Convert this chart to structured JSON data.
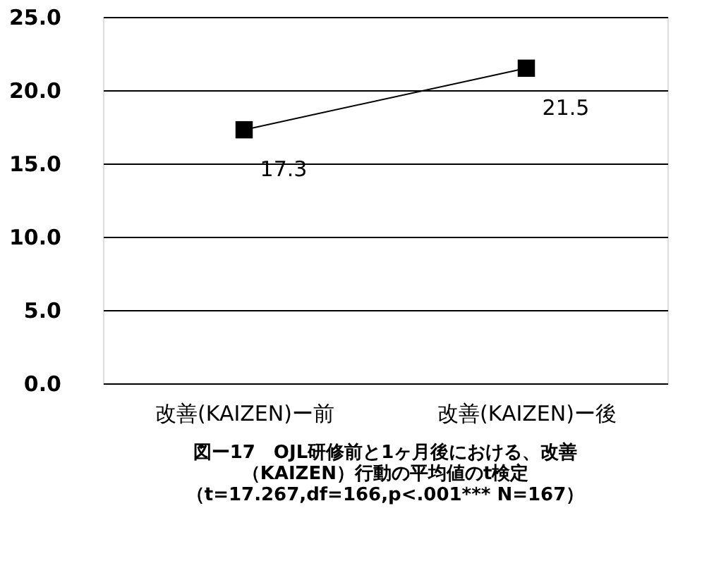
{
  "chart_data": {
    "type": "line",
    "title": [
      "図ー17　OJL研修前と1ヶ月後における、改善",
      "（KAIZEN）行動の平均値のt検定",
      "（t=17.267,df=166,p<.001*** N=167）"
    ],
    "categories": [
      "改善(KAIZEN)ー前",
      "改善(KAIZEN)ー後"
    ],
    "series": [
      {
        "color": "#000000",
        "values": [
          17.3,
          21.5
        ]
      }
    ],
    "ylim": [
      0,
      25
    ],
    "yticks": [
      {
        "value": 0,
        "label": "0.0"
      },
      {
        "value": 5,
        "label": "5.0"
      },
      {
        "value": 10,
        "label": "10.0"
      },
      {
        "value": 15,
        "label": "15.0"
      },
      {
        "value": 20,
        "label": "20.0"
      },
      {
        "value": 25,
        "label": "25.0"
      }
    ],
    "grid": "y",
    "marker": "square",
    "line_style": "solid",
    "data_labels": true
  }
}
